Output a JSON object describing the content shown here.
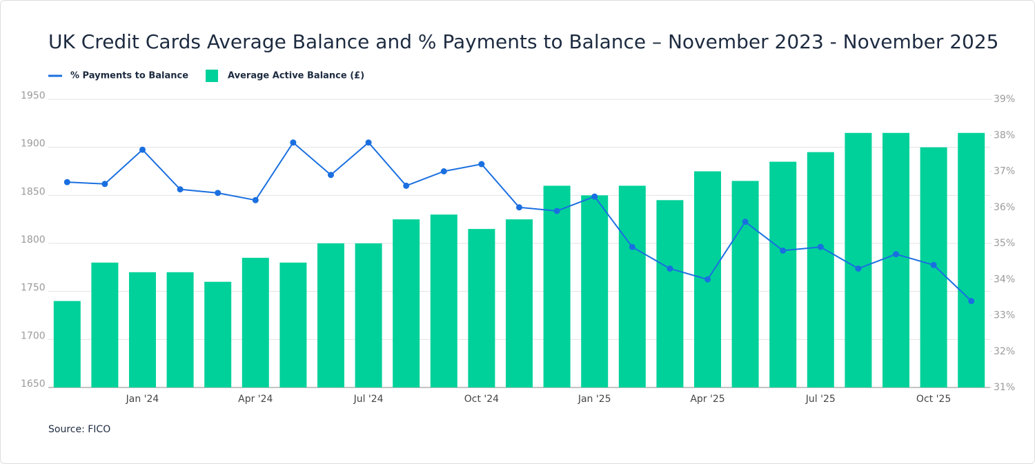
{
  "chart_data": {
    "type": "combo",
    "title": "UK Credit Cards Average Balance and % Payments to Balance – November 2023 - November 2025",
    "source": "Source: FICO",
    "categories": [
      null,
      null,
      "Jan '24",
      null,
      null,
      "Apr '24",
      null,
      null,
      "Jul '24",
      null,
      null,
      "Oct '24",
      null,
      null,
      "Jan '25",
      null,
      null,
      "Apr '25",
      null,
      null,
      "Jul '25",
      null,
      null,
      "Oct '25",
      null
    ],
    "series": [
      {
        "name": "% Payments to Balance",
        "type": "line",
        "axis": "y2",
        "color": "#1a6fe0",
        "values": [
          36.7,
          36.65,
          37.6,
          36.5,
          36.4,
          36.2,
          37.8,
          36.9,
          37.8,
          36.6,
          37.0,
          37.2,
          36.0,
          35.9,
          36.3,
          34.9,
          34.3,
          34.0,
          35.6,
          34.8,
          34.9,
          34.3,
          34.7,
          34.4,
          33.4
        ]
      },
      {
        "name": "Average Active Balance (£)",
        "type": "bar",
        "color": "#00d19a",
        "values": [
          1740,
          1780,
          1770,
          1770,
          1760,
          1785,
          1780,
          1800,
          1800,
          1825,
          1830,
          1815,
          1825,
          1860,
          1850,
          1860,
          1845,
          1875,
          1865,
          1885,
          1895,
          1915,
          1915,
          1900,
          1915
        ]
      }
    ],
    "ylim": [
      1650,
      1950
    ],
    "yticks": [
      1650,
      1700,
      1750,
      1800,
      1850,
      1900,
      1950
    ],
    "y2lim": [
      31,
      39
    ],
    "y2ticks": [
      {
        "value": 31,
        "label": "31%"
      },
      {
        "value": 32,
        "label": "32%"
      },
      {
        "value": 33,
        "label": "33%"
      },
      {
        "value": 34,
        "label": "34%"
      },
      {
        "value": 35,
        "label": "35%"
      },
      {
        "value": 36,
        "label": "36%"
      },
      {
        "value": 37,
        "label": "37%"
      },
      {
        "value": 38,
        "label": "38%"
      },
      {
        "value": 39,
        "label": "39%"
      }
    ],
    "grid": true,
    "legend": "top-left"
  }
}
